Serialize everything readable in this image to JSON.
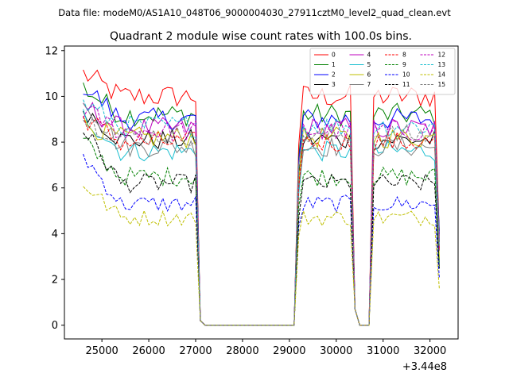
{
  "chart_data": {
    "type": "line",
    "suptitle": "Data file: modeM0/AS1A10_048T06_9000004030_27911cztM0_level2_quad_clean.evt",
    "title": "Quadrant 2 module wise count rates with 100.0s bins.",
    "xlabel": "",
    "ylabel": "",
    "x_offset_label": "+3.44e8",
    "xlim": [
      24200,
      32600
    ],
    "ylim": [
      -0.6,
      12.2
    ],
    "xticks": [
      25000,
      26000,
      27000,
      28000,
      29000,
      30000,
      31000,
      32000
    ],
    "xtick_labels": [
      "25000",
      "26000",
      "27000",
      "28000",
      "29000",
      "30000",
      "31000",
      "32000"
    ],
    "yticks": [
      0,
      2,
      4,
      6,
      8,
      10,
      12
    ],
    "ytick_labels": [
      "0",
      "2",
      "4",
      "6",
      "8",
      "10",
      "12"
    ],
    "bin_start": 24600,
    "bin_width": 100,
    "segments": [
      {
        "start": 24600,
        "end": 27000
      },
      {
        "start": 29200,
        "end": 30300
      },
      {
        "start": 30800,
        "end": 32200
      }
    ],
    "legend_position": "top-right",
    "series": [
      {
        "name": "0",
        "color": "#ff0000",
        "dash": "solid",
        "level": 10.0,
        "start": 11.0
      },
      {
        "name": "1",
        "color": "#008000",
        "dash": "solid",
        "level": 9.2,
        "start": 10.4
      },
      {
        "name": "2",
        "color": "#0000ff",
        "dash": "solid",
        "level": 9.0,
        "start": 10.5
      },
      {
        "name": "3",
        "color": "#000000",
        "dash": "solid",
        "level": 8.1,
        "start": 9.5
      },
      {
        "name": "4",
        "color": "#bf00bf",
        "dash": "solid",
        "level": 8.6,
        "start": 9.6
      },
      {
        "name": "5",
        "color": "#17becf",
        "dash": "solid",
        "level": 7.6,
        "start": 9.2
      },
      {
        "name": "6",
        "color": "#bfbf00",
        "dash": "solid",
        "level": 8.2,
        "start": 8.8
      },
      {
        "name": "7",
        "color": "#808080",
        "dash": "solid",
        "level": 7.8,
        "start": 9.9
      },
      {
        "name": "8",
        "color": "#ff0000",
        "dash": "dashed",
        "level": 8.0,
        "start": 9.1
      },
      {
        "name": "9",
        "color": "#008000",
        "dash": "dashed",
        "level": 6.5,
        "start": 8.0
      },
      {
        "name": "10",
        "color": "#0000ff",
        "dash": "dashed",
        "level": 5.3,
        "start": 7.4
      },
      {
        "name": "11",
        "color": "#000000",
        "dash": "dashed",
        "level": 6.2,
        "start": 8.6
      },
      {
        "name": "12",
        "color": "#bf00bf",
        "dash": "dashed",
        "level": 8.5,
        "start": 9.4
      },
      {
        "name": "13",
        "color": "#17becf",
        "dash": "dashed",
        "level": 8.7,
        "start": 9.7
      },
      {
        "name": "14",
        "color": "#bfbf00",
        "dash": "dashed",
        "level": 4.7,
        "start": 6.2
      },
      {
        "name": "15",
        "color": "#808080",
        "dash": "dashed",
        "level": 8.3,
        "start": 9.0
      }
    ]
  }
}
